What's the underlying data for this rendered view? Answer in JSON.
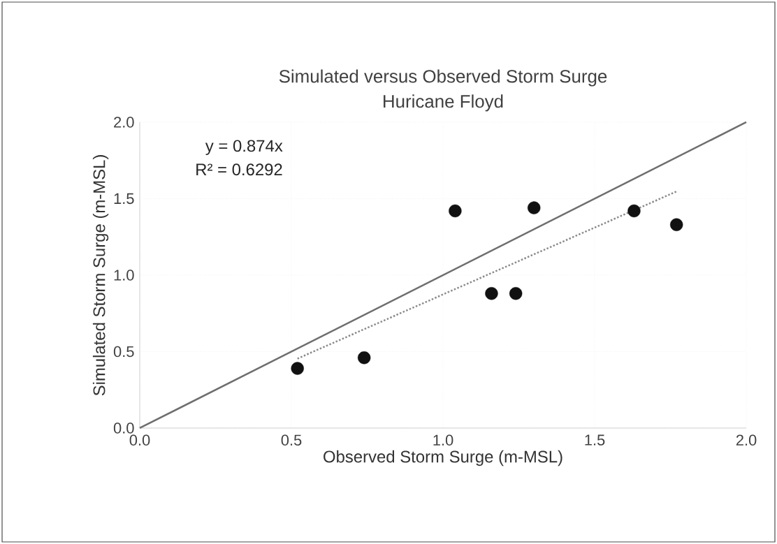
{
  "chart_data": {
    "type": "scatter",
    "title": "Simulated versus Observed Storm Surge",
    "subtitle": "Huricane Floyd",
    "xlabel": "Observed Storm Surge (m-MSL)",
    "ylabel": "Simulated Storm Surge (m-MSL)",
    "xlim": [
      0,
      2
    ],
    "ylim": [
      0,
      2
    ],
    "xticks": [
      {
        "value": 0,
        "label": "0.0"
      },
      {
        "value": 0.5,
        "label": "0.5"
      },
      {
        "value": 1,
        "label": "1.0"
      },
      {
        "value": 1.5,
        "label": "1.5"
      },
      {
        "value": 2,
        "label": "2.0"
      }
    ],
    "yticks": [
      {
        "value": 0,
        "label": "0.0"
      },
      {
        "value": 0.5,
        "label": "0.5"
      },
      {
        "value": 1,
        "label": "1.0"
      },
      {
        "value": 1.5,
        "label": "1.5"
      },
      {
        "value": 2,
        "label": "2.0"
      }
    ],
    "grid": true,
    "series": [
      {
        "type": "line",
        "color": "#6e6e6e",
        "line_style": "solid",
        "marker": "none",
        "x": [
          0,
          2
        ],
        "values": [
          0,
          2
        ]
      },
      {
        "type": "line",
        "color": "#8a8a8a",
        "line_style": "dotted",
        "marker": "none",
        "x": [
          0.52,
          1.77
        ],
        "values": [
          0.454,
          1.547
        ]
      },
      {
        "color": "#111111",
        "marker": "circle",
        "x": [
          0.52,
          0.74,
          1.04,
          1.16,
          1.24,
          1.3,
          1.63,
          1.77
        ],
        "values": [
          0.39,
          0.46,
          1.42,
          0.88,
          0.88,
          1.44,
          1.42,
          1.33
        ]
      }
    ],
    "annotations": [
      "y = 0.874x",
      "R² = 0.6292"
    ]
  }
}
